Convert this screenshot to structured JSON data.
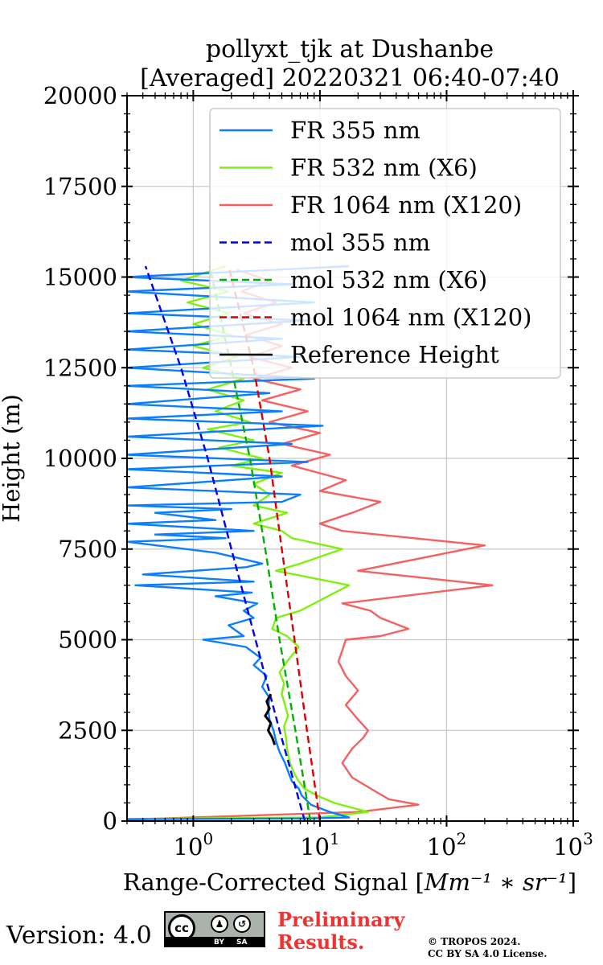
{
  "chart_data": {
    "type": "line",
    "title_line1": "pollyxt_tjk at Dushanbe",
    "title_line2": "[Averaged] 20220321 06:40-07:40",
    "xlabel": "Range-Corrected Signal [",
    "xlabel_units": "Mm⁻¹ ∗ sr⁻¹",
    "xlabel_close": "]",
    "ylabel": "Height (m)",
    "xscale": "log",
    "xlim": [
      0.3,
      1000
    ],
    "ylim": [
      0,
      20000
    ],
    "x_ticks": [
      {
        "value": 1,
        "base": "10",
        "exp": "0"
      },
      {
        "value": 10,
        "base": "10",
        "exp": "1"
      },
      {
        "value": 100,
        "base": "10",
        "exp": "2"
      },
      {
        "value": 1000,
        "base": "10",
        "exp": "3"
      }
    ],
    "y_ticks": [
      0,
      2500,
      5000,
      7500,
      10000,
      12500,
      15000,
      17500,
      20000
    ],
    "y_tick_labels": [
      "0",
      "2500",
      "5000",
      "7500",
      "10000",
      "12500",
      "15000",
      "17500",
      "20000"
    ],
    "grid": true,
    "legend_position": "top-right",
    "series": [
      {
        "name": "FR 355 nm",
        "color": "#0a7eff",
        "style": "solid",
        "points": [
          [
            0.3,
            50
          ],
          [
            8,
            70
          ],
          [
            17,
            100
          ],
          [
            12,
            250
          ],
          [
            8.5,
            450
          ],
          [
            7.2,
            700
          ],
          [
            6.8,
            900
          ],
          [
            6,
            1100
          ],
          [
            5.7,
            1300
          ],
          [
            5.3,
            1600
          ],
          [
            4.8,
            1900
          ],
          [
            4.5,
            2200
          ],
          [
            4.3,
            2500
          ],
          [
            4.0,
            2800
          ],
          [
            3.9,
            3100
          ],
          [
            4.0,
            3400
          ],
          [
            3.5,
            3700
          ],
          [
            3.8,
            4000
          ],
          [
            3.0,
            4300
          ],
          [
            3.4,
            4500
          ],
          [
            2.6,
            4800
          ],
          [
            1.2,
            5000
          ],
          [
            2.5,
            5100
          ],
          [
            1.9,
            5400
          ],
          [
            3.0,
            5600
          ],
          [
            2.5,
            5800
          ],
          [
            3.2,
            6000
          ],
          [
            1.5,
            6200
          ],
          [
            2.9,
            6300
          ],
          [
            0.35,
            6500
          ],
          [
            3.0,
            6600
          ],
          [
            0.4,
            6800
          ],
          [
            2.6,
            7000
          ],
          [
            3.5,
            7100
          ],
          [
            1.5,
            7400
          ],
          [
            0.3,
            7700
          ],
          [
            1.8,
            7800
          ],
          [
            0.5,
            7900
          ],
          [
            3.0,
            8000
          ],
          [
            0.3,
            8200
          ],
          [
            1.5,
            8300
          ],
          [
            0.5,
            8500
          ],
          [
            2.0,
            8600
          ],
          [
            0.3,
            8700
          ],
          [
            5.0,
            8800
          ],
          [
            7.0,
            9000
          ],
          [
            0.3,
            9200
          ],
          [
            5.0,
            9500
          ],
          [
            0.3,
            9700
          ],
          [
            8.0,
            9900
          ],
          [
            0.3,
            10100
          ],
          [
            6.0,
            10400
          ],
          [
            0.3,
            10600
          ],
          [
            10.5,
            10900
          ],
          [
            0.3,
            11100
          ],
          [
            5.0,
            11300
          ],
          [
            0.3,
            11500
          ],
          [
            4.0,
            11800
          ],
          [
            0.3,
            12000
          ],
          [
            9.0,
            12200
          ],
          [
            0.3,
            12500
          ],
          [
            7.0,
            12800
          ],
          [
            0.3,
            13000
          ],
          [
            5.0,
            13300
          ],
          [
            0.3,
            13500
          ],
          [
            8.0,
            13800
          ],
          [
            0.3,
            14000
          ],
          [
            9.0,
            14300
          ],
          [
            0.3,
            14600
          ],
          [
            6.0,
            14800
          ],
          [
            0.3,
            15000
          ],
          [
            17.0,
            15300
          ]
        ]
      },
      {
        "name": "FR 532 nm (X6)",
        "color": "#80f010",
        "style": "solid",
        "points": [
          [
            0.3,
            60
          ],
          [
            10,
            100
          ],
          [
            24,
            250
          ],
          [
            13,
            500
          ],
          [
            9.5,
            700
          ],
          [
            7.5,
            900
          ],
          [
            6.8,
            1100
          ],
          [
            6.3,
            1300
          ],
          [
            5.8,
            1600
          ],
          [
            5.5,
            2000
          ],
          [
            5.4,
            2300
          ],
          [
            5.2,
            2600
          ],
          [
            5.6,
            2900
          ],
          [
            5.3,
            3200
          ],
          [
            5.0,
            3500
          ],
          [
            5.2,
            3800
          ],
          [
            4.8,
            4100
          ],
          [
            5.5,
            4400
          ],
          [
            6.8,
            4800
          ],
          [
            5.5,
            5100
          ],
          [
            4.2,
            5300
          ],
          [
            4.5,
            5600
          ],
          [
            7.0,
            5800
          ],
          [
            17.0,
            6500
          ],
          [
            4.5,
            6900
          ],
          [
            7.0,
            7100
          ],
          [
            15.0,
            7500
          ],
          [
            6.0,
            7800
          ],
          [
            5.0,
            8000
          ],
          [
            3.0,
            8200
          ],
          [
            5.5,
            8500
          ],
          [
            3.0,
            8700
          ],
          [
            4.0,
            9000
          ],
          [
            3.0,
            9300
          ],
          [
            5.0,
            9600
          ],
          [
            2.0,
            9800
          ],
          [
            3.5,
            10000
          ],
          [
            1.6,
            10300
          ],
          [
            3.0,
            10500
          ],
          [
            1.3,
            10800
          ],
          [
            2.8,
            11000
          ],
          [
            1.5,
            11300
          ],
          [
            2.5,
            11600
          ],
          [
            1.3,
            11900
          ],
          [
            2.5,
            12200
          ],
          [
            1.2,
            12500
          ],
          [
            2.2,
            12800
          ],
          [
            1.0,
            13100
          ],
          [
            2.0,
            13400
          ],
          [
            1.0,
            13700
          ],
          [
            1.9,
            14000
          ],
          [
            0.9,
            14300
          ],
          [
            1.9,
            14600
          ],
          [
            0.8,
            14900
          ],
          [
            1.8,
            15300
          ]
        ]
      },
      {
        "name": "FR 1064 nm (X120)",
        "color": "#f66060",
        "style": "solid",
        "points": [
          [
            0.3,
            40
          ],
          [
            20,
            250
          ],
          [
            60,
            450
          ],
          [
            35,
            600
          ],
          [
            25,
            900
          ],
          [
            18,
            1200
          ],
          [
            15,
            1600
          ],
          [
            18,
            2000
          ],
          [
            22,
            2300
          ],
          [
            24,
            2500
          ],
          [
            20,
            2800
          ],
          [
            16,
            3200
          ],
          [
            20,
            3600
          ],
          [
            16,
            4000
          ],
          [
            14,
            4400
          ],
          [
            15,
            4700
          ],
          [
            16,
            5000
          ],
          [
            30,
            5100
          ],
          [
            50,
            5300
          ],
          [
            30,
            5600
          ],
          [
            25,
            5800
          ],
          [
            15,
            6000
          ],
          [
            230,
            6500
          ],
          [
            20,
            6900
          ],
          [
            200,
            7600
          ],
          [
            15,
            8000
          ],
          [
            10,
            8200
          ],
          [
            18,
            8500
          ],
          [
            30,
            8800
          ],
          [
            10,
            9100
          ],
          [
            16,
            9400
          ],
          [
            6,
            9800
          ],
          [
            12,
            10100
          ],
          [
            5,
            10400
          ],
          [
            10,
            10700
          ],
          [
            4,
            11000
          ],
          [
            8,
            11300
          ],
          [
            3.5,
            11600
          ],
          [
            7,
            11900
          ],
          [
            3,
            12200
          ],
          [
            6,
            12500
          ],
          [
            2.8,
            12800
          ],
          [
            5,
            13100
          ],
          [
            2.6,
            13400
          ],
          [
            5,
            13700
          ],
          [
            2.5,
            14000
          ],
          [
            4.5,
            14300
          ],
          [
            2.4,
            14600
          ],
          [
            4,
            14900
          ],
          [
            2.2,
            15200
          ]
        ]
      },
      {
        "name": "mol 355 nm",
        "color": "#0000ee",
        "style": "dashed",
        "points": [
          [
            7.6,
            0
          ],
          [
            4.8,
            2500
          ],
          [
            3.1,
            5000
          ],
          [
            2.0,
            7500
          ],
          [
            1.3,
            10000
          ],
          [
            0.8,
            12500
          ],
          [
            0.42,
            15300
          ]
        ]
      },
      {
        "name": "mol 532 nm (X6)",
        "color": "#00b000",
        "style": "dashed",
        "points": [
          [
            8.4,
            0
          ],
          [
            6.4,
            2500
          ],
          [
            4.8,
            5000
          ],
          [
            3.7,
            7500
          ],
          [
            2.8,
            10000
          ],
          [
            2.0,
            12500
          ],
          [
            1.35,
            15300
          ]
        ]
      },
      {
        "name": "mol 1064 nm (X120)",
        "color": "#dd0000",
        "style": "dashed",
        "points": [
          [
            10.0,
            0
          ],
          [
            7.9,
            2500
          ],
          [
            6.3,
            5000
          ],
          [
            5.0,
            7500
          ],
          [
            4.0,
            10000
          ],
          [
            3.0,
            12500
          ],
          [
            1.9,
            15300
          ]
        ]
      },
      {
        "name": "Reference Height",
        "color": "#000000",
        "style": "solid",
        "points": [
          [
            4.4,
            2100
          ],
          [
            4.2,
            2300
          ],
          [
            3.9,
            2500
          ],
          [
            4.1,
            2700
          ],
          [
            3.7,
            2900
          ],
          [
            4.0,
            3100
          ],
          [
            3.8,
            3300
          ],
          [
            4.1,
            3500
          ]
        ]
      }
    ]
  },
  "footer": {
    "version": "Version: 4.0",
    "cc_label": "cc",
    "cc_by": "BY",
    "cc_sa": "SA",
    "preliminary_line1": "Preliminary",
    "preliminary_line2": "Results.",
    "copyright_line1": "© TROPOS 2024.",
    "copyright_line2": "CC BY SA 4.0 License."
  }
}
